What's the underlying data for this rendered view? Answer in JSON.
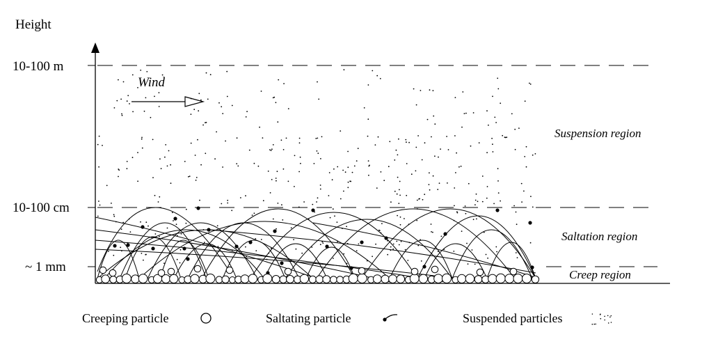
{
  "diagram": {
    "y_axis_title": "Height",
    "height_levels": [
      "10-100 m",
      "10-100 cm",
      "~ 1 mm"
    ],
    "wind_label": "Wind",
    "regions": {
      "suspension": "Suspension region",
      "saltation": "Saltation region",
      "creep": "Creep region"
    },
    "legend": {
      "creeping": "Creeping particle",
      "saltating": "Saltating particle",
      "suspended": "Suspended particles"
    },
    "colors": {
      "ink": "#000000",
      "background": "#ffffff"
    }
  }
}
